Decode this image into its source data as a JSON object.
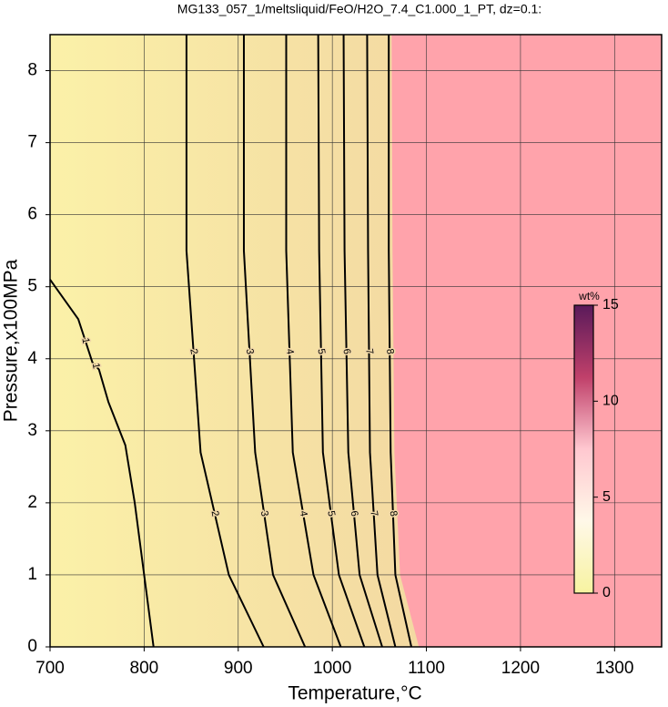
{
  "chart_data": {
    "type": "contour",
    "title": "MG133_057_1/meltsliquid/FeO/H2O_7.4_C1.000_1_PT, dz=0.1:",
    "x_label": "Temperature,°C",
    "y_label": "Pressure,x100MPa",
    "xlim": [
      700,
      1350
    ],
    "xticks": [
      700,
      800,
      900,
      1000,
      1100,
      1200,
      1300
    ],
    "ylim": [
      0,
      8.5
    ],
    "yticks": [
      0,
      1,
      2,
      3,
      4,
      5,
      6,
      7,
      8
    ],
    "grid": true,
    "colorbar": {
      "label": "wt%",
      "lim": [
        0,
        15
      ],
      "ticks": [
        0,
        5,
        10,
        15
      ],
      "colors": [
        "#f7f3a0",
        "#fff8e8",
        "#ffc8d0",
        "#c0406a",
        "#5a1a5a"
      ]
    },
    "saturated_color": "#ffa3ab",
    "contours": [
      {
        "level": 1,
        "T": [
          700,
          730,
          745,
          752,
          762,
          780,
          790,
          795,
          802,
          810
        ],
        "P": [
          5.1,
          4.55,
          3.95,
          3.85,
          3.4,
          2.8,
          2.0,
          1.5,
          0.8,
          0
        ]
      },
      {
        "level": 2,
        "T": [
          845,
          845,
          860,
          890,
          927
        ],
        "P": [
          8.5,
          5.5,
          2.7,
          1,
          0
        ]
      },
      {
        "level": 3,
        "T": [
          906,
          906,
          918,
          937,
          971
        ],
        "P": [
          8.5,
          5.5,
          2.7,
          1,
          0
        ]
      },
      {
        "level": 4,
        "T": [
          951,
          951,
          958,
          980,
          1009
        ],
        "P": [
          8.5,
          5.5,
          2.7,
          1,
          0
        ]
      },
      {
        "level": 5,
        "T": [
          985,
          986,
          990,
          1007,
          1034
        ],
        "P": [
          8.5,
          5.5,
          2.7,
          1,
          0
        ]
      },
      {
        "level": 6,
        "T": [
          1012,
          1013,
          1017,
          1029,
          1053
        ],
        "P": [
          8.5,
          5.5,
          2.7,
          1,
          0
        ]
      },
      {
        "level": 7,
        "T": [
          1037,
          1038,
          1040,
          1048,
          1067
        ],
        "P": [
          8.5,
          5.5,
          2.7,
          1,
          0
        ]
      },
      {
        "level": 8,
        "T": [
          1060,
          1060,
          1062,
          1067,
          1084
        ],
        "P": [
          8.5,
          5.5,
          2.7,
          1,
          0
        ]
      }
    ],
    "saturation_boundary": {
      "T": [
        1063,
        1064,
        1066,
        1072,
        1092
      ],
      "P": [
        8.5,
        5.5,
        2.7,
        1,
        0
      ]
    }
  }
}
